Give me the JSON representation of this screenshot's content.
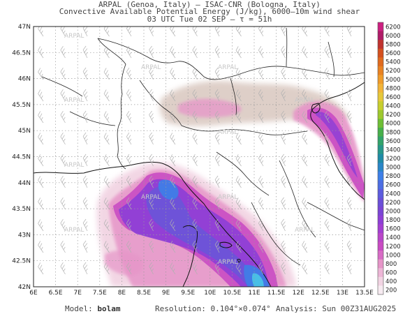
{
  "header": {
    "line1": "ARPAL (Genoa, Italy)  –  ISAC-CNR (Bologna, Italy)",
    "line2": "Convective Available Potential Energy (J/kg), 6000–10m wind shear",
    "line3": "03 UTC Tue 02 SEP  –  τ = 51h"
  },
  "map": {
    "lat_labels": [
      "47N",
      "46.5N",
      "46N",
      "45.5N",
      "45N",
      "44.5N",
      "44N",
      "43.5N",
      "43N",
      "42.5N",
      "42N"
    ],
    "lon_labels": [
      "6E",
      "6.5E",
      "7E",
      "7.5E",
      "8E",
      "8.5E",
      "9E",
      "9.5E",
      "10E",
      "10.5E",
      "11E",
      "11.5E",
      "12E",
      "12.5E",
      "13E",
      "13.5E"
    ],
    "watermark": "ARPAL",
    "colors": {
      "pink_light": "#f2d4e3",
      "pink": "#e695c8",
      "magenta": "#c94bc3",
      "purple": "#8e3fd6",
      "violet": "#6a55d8",
      "blue": "#3d7fe8",
      "cyan": "#49c7e6",
      "tan": "#d9c7bf",
      "brown": "#b8948a"
    }
  },
  "colorbar": {
    "ticks": [
      6200,
      6000,
      5800,
      5600,
      5400,
      5200,
      5000,
      4800,
      4600,
      4400,
      4200,
      4000,
      3800,
      3600,
      3400,
      3200,
      3000,
      2800,
      2600,
      2400,
      2200,
      2000,
      1800,
      1600,
      1400,
      1200,
      1000,
      800,
      600,
      400,
      200
    ],
    "colors": [
      "#cc2080",
      "#b01c68",
      "#c0332f",
      "#d4501f",
      "#e06a1e",
      "#e98222",
      "#f09c2a",
      "#f2b438",
      "#e6c83a",
      "#c8cf2e",
      "#9ec92e",
      "#6fbf35",
      "#47b04a",
      "#32a36a",
      "#27978a",
      "#1f8ba7",
      "#2a86c8",
      "#3d7fe8",
      "#4d6ee3",
      "#5d5cde",
      "#6b4fd8",
      "#7a45d5",
      "#8e3fd6",
      "#a43fd2",
      "#b946c9",
      "#c94bc3",
      "#d86cc6",
      "#e695c8",
      "#edb6d6",
      "#f2d4e3",
      "#f7ebf1"
    ]
  },
  "footer": {
    "model_label": "Model:",
    "model_value": "bolam",
    "resolution_label": "Resolution:",
    "resolution_value": "0.104°×0.074°",
    "analysis_label": "Analysis:",
    "analysis_value": "Sun 00Z31AUG2025"
  }
}
